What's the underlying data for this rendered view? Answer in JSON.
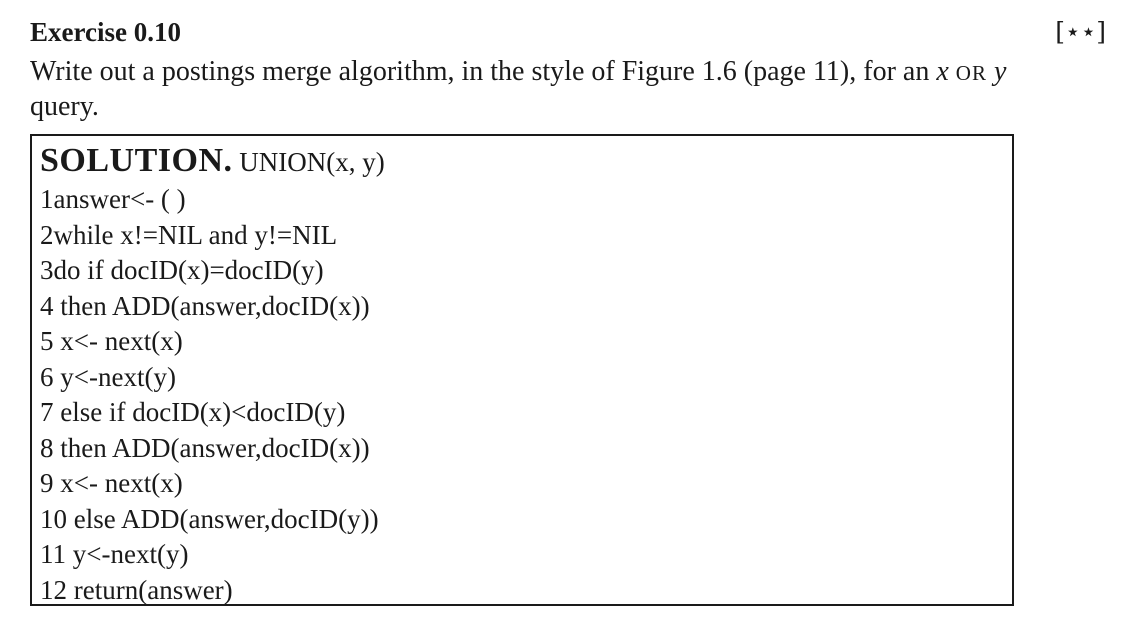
{
  "exercise": {
    "title": "Exercise 0.10",
    "difficulty": "[⋆⋆]"
  },
  "question": {
    "text_before": "Write out a postings merge algorithm, in the style of Figure 1.6 (page 11), for an ",
    "var_x": "x",
    "op": "OR",
    "var_y": "y",
    "text_after": "query."
  },
  "solution": {
    "label": "SOLUTION.",
    "function": "UNION(x, y)",
    "lines": [
      "1answer<- ( )",
      "2while x!=NIL and y!=NIL",
      "3do if docID(x)=docID(y)",
      "4 then ADD(answer,docID(x))",
      "5 x<- next(x)",
      "6 y<-next(y)",
      "7 else if docID(x)<docID(y)",
      "8 then ADD(answer,docID(x))",
      "9 x<- next(x)",
      "10 else ADD(answer,docID(y))",
      "11 y<-next(y)",
      "12 return(answer)"
    ]
  }
}
